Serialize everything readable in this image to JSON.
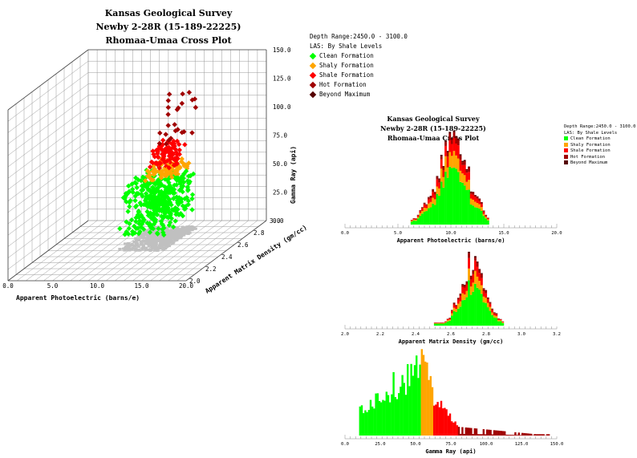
{
  "cross_plot": {
    "title1": "Kansas Geological Survey",
    "title2": "Newby 2-28R (15-189-22225)",
    "title3": "Rhomaa-Umaa Cross Plot",
    "depth_range": "Depth Range:2450.0 - 3100.0",
    "las_label": "LAS: By Shale Levels"
  },
  "histograms": {
    "title1": "Kansas Geological Survey",
    "title2": "Newby 2-28R (15-189-22225)",
    "title3": "Rhomaa-Umaa Cross Plot",
    "depth_range": "Depth Range:2450.0 - 3100.0",
    "las_label": "LAS: By Shale Levels"
  },
  "legend": [
    {
      "label": "Clean Formation",
      "color": "#00ff00"
    },
    {
      "label": "Shaly Formation",
      "color": "#ffa500"
    },
    {
      "label": "Shale Formation",
      "color": "#ff0000"
    },
    {
      "label": "Hot Formation",
      "color": "#a00000"
    },
    {
      "label": "Beyond Maximum",
      "color": "#550000"
    }
  ],
  "chart_data": [
    {
      "type": "scatter",
      "subtype": "3d-scatter",
      "title": "Rhomaa-Umaa Cross Plot",
      "xlabel": "Apparent Photoelectric (barns/e)",
      "ylabel": "Apparent Matrix Density (gm/cc)",
      "zlabel": "Gamma Ray (api)",
      "xlim": [
        0,
        20
      ],
      "ylim": [
        2.0,
        3.0
      ],
      "zlim": [
        0,
        150
      ],
      "x_ticks": [
        "0.0",
        "5.0",
        "10.0",
        "15.0",
        "20.0"
      ],
      "y_ticks": [
        "2.0",
        "2.2",
        "2.4",
        "2.6",
        "2.8",
        "3.0"
      ],
      "z_ticks": [
        "0.0",
        "25.0",
        "50.0",
        "75.0",
        "100.0",
        "125.0",
        "150.0"
      ],
      "projection_color": "#c0c0c0",
      "clusters": [
        {
          "name": "Clean Formation",
          "color": "#00ff00",
          "pe": [
            8.0,
            13.0
          ],
          "rho": [
            2.5,
            2.9
          ],
          "gr": [
            12,
            54
          ],
          "count": 380
        },
        {
          "name": "Shaly Formation",
          "color": "#ffa500",
          "pe": [
            9.5,
            12.5
          ],
          "rho": [
            2.6,
            2.85
          ],
          "gr": [
            54,
            63
          ],
          "count": 90
        },
        {
          "name": "Shale Formation",
          "color": "#ff0000",
          "pe": [
            10.0,
            12.5
          ],
          "rho": [
            2.65,
            2.85
          ],
          "gr": [
            63,
            80
          ],
          "count": 90
        },
        {
          "name": "Hot Formation",
          "color": "#a00000",
          "pe": [
            10.5,
            13.0
          ],
          "rho": [
            2.7,
            2.9
          ],
          "gr": [
            80,
            122
          ],
          "count": 25
        }
      ]
    },
    {
      "type": "bar",
      "subtype": "stacked-histogram",
      "xlabel": "Apparent Photoelectric (barns/e)",
      "xlim": [
        0,
        20
      ],
      "x_ticks": [
        "0.0",
        "5.0",
        "10.0",
        "15.0",
        "20.0"
      ],
      "center": 10.2,
      "spread": 1.6,
      "range": [
        6.2,
        13.6
      ],
      "peak": 1.0
    },
    {
      "type": "bar",
      "subtype": "stacked-histogram",
      "xlabel": "Apparent Matrix Density (gm/cc)",
      "xlim": [
        2.0,
        3.2
      ],
      "x_ticks": [
        "2.0",
        "2.2",
        "2.4",
        "2.6",
        "2.8",
        "3.0",
        "3.2"
      ],
      "center": 2.73,
      "spread": 0.07,
      "range": [
        2.5,
        2.9
      ],
      "peak": 1.0
    },
    {
      "type": "bar",
      "subtype": "histogram",
      "xlabel": "Gamma Ray (api)",
      "xlim": [
        0,
        150
      ],
      "x_ticks": [
        "0.0",
        "25.0",
        "50.0",
        "75.0",
        "100.0",
        "125.0",
        "150.0"
      ],
      "bins": [
        {
          "from": 10,
          "to": 54,
          "color": "#00ff00"
        },
        {
          "from": 54,
          "to": 63,
          "color": "#ffa500"
        },
        {
          "from": 63,
          "to": 80,
          "color": "#ff0000"
        },
        {
          "from": 80,
          "to": 145,
          "color": "#a00000"
        }
      ]
    }
  ]
}
